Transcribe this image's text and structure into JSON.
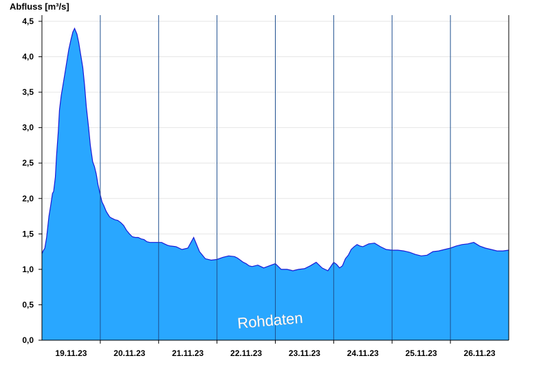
{
  "chart_data": {
    "type": "area",
    "title": "",
    "ylabel": "Abfluss [m³/s]",
    "xlabel": "",
    "ylim": [
      0,
      4.5
    ],
    "yticks": [
      "0,0",
      "0,5",
      "1,0",
      "1,5",
      "2,0",
      "2,5",
      "3,0",
      "3,5",
      "4,0",
      "4,5"
    ],
    "x_start": "19.11.23",
    "x_end": "27.11.23",
    "x_ticks": [
      "19.11.23",
      "20.11.23",
      "21.11.23",
      "22.11.23",
      "23.11.23",
      "24.11.23",
      "25.11.23",
      "26.11.23"
    ],
    "grid": true,
    "legend": "none",
    "annotation": "Rohdaten",
    "fill_color": "#29A7FF",
    "line_color": "#1A1AD6",
    "series": [
      {
        "x": [
          0,
          0.02,
          0.05,
          0.08,
          0.1,
          0.12,
          0.15,
          0.18,
          0.2,
          0.23,
          0.25,
          0.28,
          0.3,
          0.33,
          0.36,
          0.4,
          0.43,
          0.46,
          0.5,
          0.53,
          0.56,
          0.6,
          0.63,
          0.66,
          0.7,
          0.73,
          0.76,
          0.8,
          0.83,
          0.87,
          0.9,
          0.93,
          0.96,
          1.0,
          1.03,
          1.06,
          1.1,
          1.13,
          1.16,
          1.2,
          1.25,
          1.3,
          1.35,
          1.4,
          1.45,
          1.5,
          1.55,
          1.6,
          1.65,
          1.7,
          1.75,
          1.8,
          1.85,
          1.9,
          1.95,
          2.0,
          2.05,
          2.1,
          2.15,
          2.2,
          2.3,
          2.4,
          2.5,
          2.6,
          2.7,
          2.8,
          2.9,
          3.0,
          3.1,
          3.2,
          3.3,
          3.35,
          3.4,
          3.45,
          3.5,
          3.55,
          3.6,
          3.7,
          3.8,
          3.9,
          4.0,
          4.1,
          4.2,
          4.3,
          4.4,
          4.5,
          4.6,
          4.7,
          4.8,
          4.9,
          5.0,
          5.05,
          5.1,
          5.15,
          5.2,
          5.25,
          5.3,
          5.35,
          5.4,
          5.45,
          5.5,
          5.6,
          5.7,
          5.8,
          5.9,
          6.0,
          6.1,
          6.2,
          6.3,
          6.4,
          6.5,
          6.6,
          6.7,
          6.8,
          6.9,
          7.0,
          7.1,
          7.2,
          7.3,
          7.4,
          7.5,
          7.6,
          7.7,
          7.8,
          7.9,
          8.0
        ],
        "values": [
          1.22,
          1.26,
          1.3,
          1.45,
          1.6,
          1.75,
          1.9,
          2.07,
          2.1,
          2.3,
          2.6,
          2.95,
          3.25,
          3.45,
          3.6,
          3.8,
          3.95,
          4.1,
          4.25,
          4.35,
          4.4,
          4.32,
          4.2,
          4.05,
          3.85,
          3.6,
          3.3,
          3.0,
          2.75,
          2.52,
          2.45,
          2.35,
          2.2,
          2.05,
          1.95,
          1.9,
          1.82,
          1.78,
          1.74,
          1.72,
          1.7,
          1.69,
          1.66,
          1.62,
          1.55,
          1.5,
          1.46,
          1.45,
          1.45,
          1.43,
          1.42,
          1.39,
          1.38,
          1.38,
          1.38,
          1.38,
          1.38,
          1.36,
          1.34,
          1.33,
          1.32,
          1.28,
          1.3,
          1.45,
          1.25,
          1.15,
          1.13,
          1.14,
          1.17,
          1.19,
          1.18,
          1.16,
          1.13,
          1.1,
          1.08,
          1.05,
          1.04,
          1.06,
          1.02,
          1.05,
          1.08,
          1.0,
          1.0,
          0.98,
          1.0,
          1.01,
          1.05,
          1.1,
          1.02,
          0.98,
          1.1,
          1.07,
          1.02,
          1.05,
          1.15,
          1.2,
          1.28,
          1.32,
          1.35,
          1.33,
          1.32,
          1.36,
          1.37,
          1.32,
          1.28,
          1.27,
          1.27,
          1.26,
          1.24,
          1.21,
          1.19,
          1.2,
          1.25,
          1.26,
          1.28,
          1.3,
          1.33,
          1.35,
          1.36,
          1.38,
          1.33,
          1.3,
          1.28,
          1.26,
          1.26,
          1.27
        ]
      }
    ]
  }
}
